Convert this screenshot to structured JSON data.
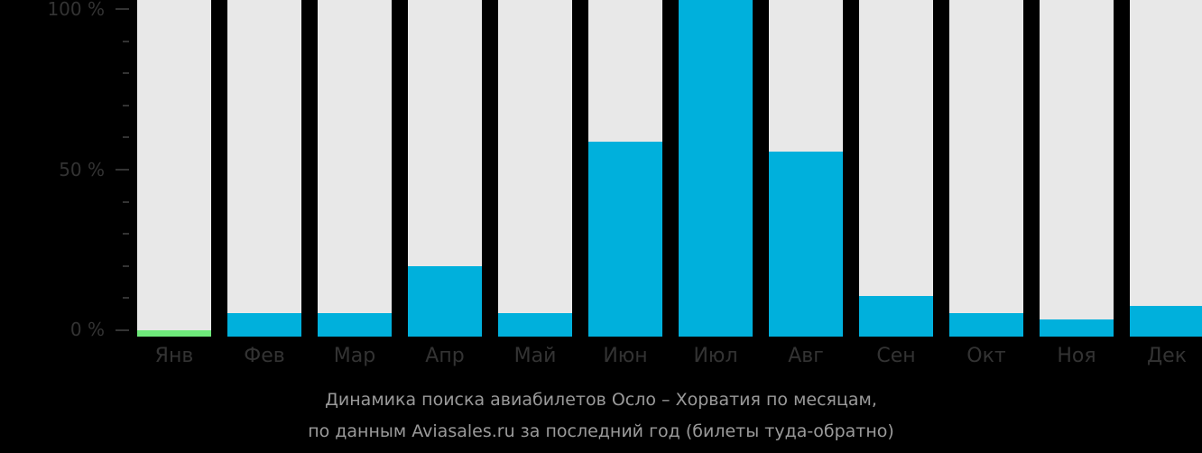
{
  "chart_data": {
    "type": "bar",
    "title": "Динамика поиска авиабилетов Осло – Хорватия по месяцам, по данным Aviasales.ru за последний год (билеты туда-обратно)",
    "categories": [
      "Янв",
      "Фев",
      "Мар",
      "Апр",
      "Май",
      "Июн",
      "Июл",
      "Авг",
      "Сен",
      "Окт",
      "Ноя",
      "Дек"
    ],
    "values": [
      2,
      7,
      7,
      21,
      7,
      58,
      100,
      55,
      12,
      7,
      5,
      9
    ],
    "highlight_index": 0,
    "ylim": [
      0,
      100
    ],
    "yticks": [
      "0 %",
      "50 %",
      "100 %"
    ],
    "xlabel": "",
    "ylabel": "",
    "colors": {
      "bar": "#00b0dc",
      "current": "#6ee87a",
      "track": "#e8e8e8"
    }
  },
  "y_axis": {
    "t0": "0 %",
    "t50": "50 %",
    "t100": "100 %"
  },
  "caption": {
    "line1": "Динамика поиска авиабилетов Осло – Хорватия по месяцам,",
    "line2": "по данным Aviasales.ru за последний год (билеты туда-обратно)"
  }
}
